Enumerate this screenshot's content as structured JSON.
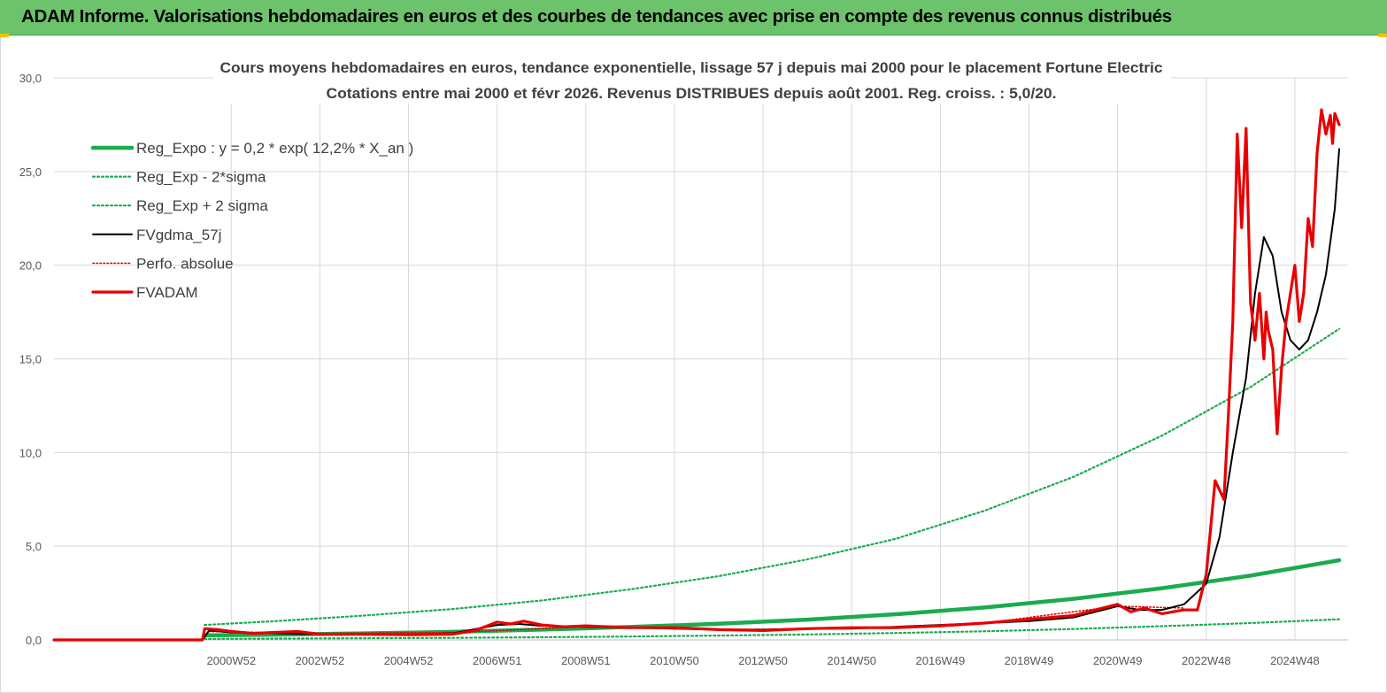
{
  "header": {
    "title": "ADAM Informe. Valorisations hebdomadaires en euros et des courbes de tendances avec prise en compte des revenus connus distribués"
  },
  "chart_data": {
    "type": "line",
    "title_line1": "Cours moyens hebdomadaires en euros, tendance exponentielle, lissage 57 j depuis mai 2000 pour le placement Fortune Electric",
    "title_line2": "Cotations entre mai 2000 et févr 2026. Revenus DISTRIBUES depuis août 2001. Reg. croiss. : 5,0/20.",
    "xlabel": "",
    "ylabel": "",
    "ylim": [
      0,
      30
    ],
    "xlim": [
      1997.0,
      2026.2
    ],
    "grid": true,
    "y_ticks": [
      "0,0",
      "5,0",
      "10,0",
      "15,0",
      "20,0",
      "25,0",
      "30,0"
    ],
    "y_tick_values": [
      0,
      5,
      10,
      15,
      20,
      25,
      30
    ],
    "x_tick_labels": [
      "2000W52",
      "2002W52",
      "2004W52",
      "2006W51",
      "2008W51",
      "2010W50",
      "2012W50",
      "2014W50",
      "2016W49",
      "2018W49",
      "2020W49",
      "2022W48",
      "2024W48"
    ],
    "x_tick_values": [
      2001.0,
      2003.0,
      2005.0,
      2007.0,
      2009.0,
      2011.0,
      2013.0,
      2015.0,
      2017.0,
      2019.0,
      2021.0,
      2023.0,
      2025.0
    ],
    "legend_position": "top-left",
    "legend": [
      {
        "label": "Reg_Expo : y = 0,2 * exp( 12,2% *  X_an )",
        "color": "#1aab4f",
        "style": "solid-thick"
      },
      {
        "label": "Reg_Exp - 2*sigma",
        "color": "#1aab4f",
        "style": "dotted"
      },
      {
        "label": "Reg_Exp + 2 sigma",
        "color": "#1aab4f",
        "style": "dotted"
      },
      {
        "label": "FVgdma_57j",
        "color": "#000000",
        "style": "solid"
      },
      {
        "label": "Perfo. absolue",
        "color": "#e00000",
        "style": "dotted"
      },
      {
        "label": "FVADAM",
        "color": "#e80000",
        "style": "solid-thick"
      }
    ],
    "series": [
      {
        "name": "Reg_Expo : y = 0,2 * exp( 12,2% *  X_an )",
        "x": [
          2000.4,
          2002,
          2004,
          2006,
          2008,
          2010,
          2012,
          2014,
          2016,
          2018,
          2020,
          2022,
          2024,
          2026.0
        ],
        "values": [
          0.24,
          0.28,
          0.35,
          0.43,
          0.55,
          0.69,
          0.86,
          1.08,
          1.37,
          1.73,
          2.19,
          2.76,
          3.43,
          4.25
        ]
      },
      {
        "name": "Reg_Exp - 2*sigma",
        "x": [
          2000.4,
          2002,
          2004,
          2006,
          2008,
          2010,
          2012,
          2014,
          2016,
          2018,
          2020,
          2022,
          2024,
          2026.0
        ],
        "values": [
          0.05,
          0.07,
          0.09,
          0.11,
          0.14,
          0.18,
          0.23,
          0.29,
          0.37,
          0.46,
          0.58,
          0.73,
          0.9,
          1.1
        ]
      },
      {
        "name": "Reg_Exp + 2 sigma",
        "x": [
          2000.4,
          2002,
          2004,
          2006,
          2008,
          2010,
          2012,
          2014,
          2016,
          2018,
          2020,
          2022,
          2024,
          2026.0
        ],
        "values": [
          0.8,
          1.0,
          1.3,
          1.65,
          2.1,
          2.7,
          3.4,
          4.3,
          5.4,
          6.9,
          8.7,
          10.9,
          13.5,
          16.6
        ]
      },
      {
        "name": "FVgdma_57j",
        "x": [
          1997.0,
          2000.35,
          2000.5,
          2001,
          2002,
          2003,
          2004,
          2005,
          2006,
          2007,
          2007.5,
          2008,
          2009,
          2010,
          2011,
          2012,
          2013,
          2014,
          2015,
          2016,
          2017,
          2018,
          2019,
          2020,
          2021,
          2021.5,
          2022,
          2022.5,
          2023,
          2023.3,
          2023.6,
          2023.9,
          2024.1,
          2024.3,
          2024.5,
          2024.7,
          2024.9,
          2025.1,
          2025.3,
          2025.5,
          2025.7,
          2025.9,
          2026.0
        ],
        "values": [
          0,
          0,
          0.5,
          0.4,
          0.35,
          0.3,
          0.28,
          0.28,
          0.35,
          0.8,
          0.85,
          0.75,
          0.7,
          0.65,
          0.6,
          0.55,
          0.55,
          0.6,
          0.6,
          0.7,
          0.8,
          0.9,
          1.0,
          1.2,
          1.8,
          1.6,
          1.6,
          1.9,
          3.0,
          5.5,
          10.0,
          14.0,
          18.5,
          21.5,
          20.5,
          17.5,
          16.0,
          15.5,
          16.0,
          17.5,
          19.5,
          23.0,
          26.2
        ]
      },
      {
        "name": "Perfo. absolue",
        "x": [
          1997.0,
          2000.35,
          2000.5,
          2003,
          2006,
          2009,
          2012,
          2015,
          2018,
          2021,
          2022.5
        ],
        "values": [
          0,
          0,
          0.45,
          0.35,
          0.4,
          0.7,
          0.55,
          0.6,
          0.9,
          1.8,
          1.7
        ]
      },
      {
        "name": "FVADAM",
        "x": [
          1997.0,
          2000.35,
          2000.4,
          2000.7,
          2001,
          2001.5,
          2002,
          2002.5,
          2003,
          2004,
          2005,
          2006,
          2006.5,
          2007,
          2007.3,
          2007.6,
          2008,
          2008.5,
          2009,
          2010,
          2011,
          2012,
          2013,
          2014,
          2015,
          2016,
          2017,
          2018,
          2019,
          2020,
          2020.5,
          2021,
          2021.3,
          2021.6,
          2022,
          2022.5,
          2022.8,
          2023,
          2023.2,
          2023.4,
          2023.5,
          2023.6,
          2023.7,
          2023.8,
          2023.9,
          2024.0,
          2024.1,
          2024.2,
          2024.3,
          2024.35,
          2024.4,
          2024.5,
          2024.6,
          2024.7,
          2024.8,
          2024.9,
          2025.0,
          2025.1,
          2025.2,
          2025.3,
          2025.4,
          2025.5,
          2025.6,
          2025.7,
          2025.8,
          2025.85,
          2025.9,
          2026.0
        ],
        "values": [
          0,
          0,
          0.6,
          0.55,
          0.45,
          0.35,
          0.4,
          0.45,
          0.3,
          0.3,
          0.28,
          0.3,
          0.5,
          0.95,
          0.85,
          1.0,
          0.8,
          0.7,
          0.75,
          0.65,
          0.65,
          0.55,
          0.5,
          0.6,
          0.65,
          0.65,
          0.75,
          0.9,
          1.1,
          1.3,
          1.6,
          1.9,
          1.5,
          1.7,
          1.4,
          1.6,
          1.6,
          3.5,
          8.5,
          7.5,
          12.0,
          17.0,
          27.0,
          22.0,
          27.3,
          18.0,
          16.0,
          18.5,
          15.0,
          17.5,
          16.5,
          15.5,
          11.0,
          14.5,
          17.0,
          18.5,
          20.0,
          17.0,
          18.5,
          22.5,
          21.0,
          26.0,
          28.3,
          27.0,
          28.0,
          26.5,
          28.1,
          27.5
        ]
      }
    ]
  }
}
